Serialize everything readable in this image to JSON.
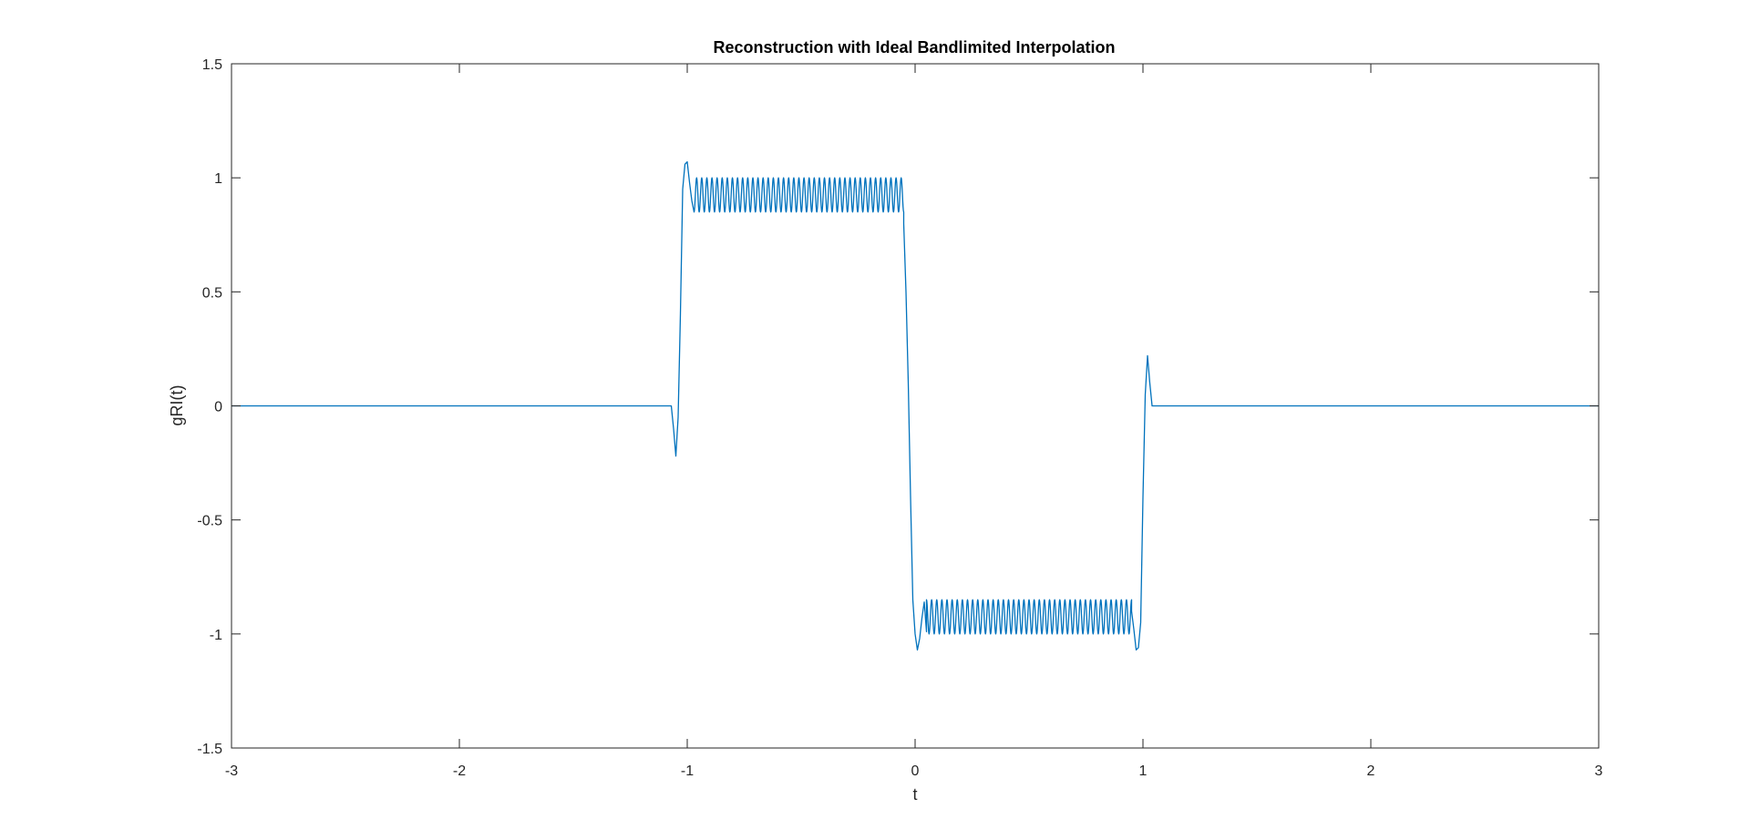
{
  "chart_data": {
    "type": "line",
    "title": "Reconstruction with Ideal Bandlimited Interpolation",
    "xlabel": "t",
    "ylabel": "gRI(t)",
    "xlim": [
      -3,
      3
    ],
    "ylim": [
      -1.5,
      1.5
    ],
    "xticks": [
      -3,
      -2,
      -1,
      0,
      1,
      2,
      3
    ],
    "xtick_labels": [
      "-3",
      "-2",
      "-1",
      "0",
      "1",
      "2",
      "3"
    ],
    "yticks": [
      -1.5,
      -1,
      -0.5,
      0,
      0.5,
      1,
      1.5
    ],
    "ytick_labels": [
      "-1.5",
      "-1",
      "-0.5",
      "0",
      "0.5",
      "1",
      "1.5"
    ],
    "grid": false,
    "line_color": "#0072BD",
    "series": [
      {
        "x": [
          -3,
          -1.07,
          -1.06,
          -1.05,
          -1.04,
          -1.03,
          -1.02,
          -1.01,
          -1.0,
          -0.99,
          -0.98,
          -0.96,
          -0.95,
          -0.94,
          -0.92,
          -0.1,
          -0.08,
          -0.07,
          -0.06,
          -0.05,
          -0.04,
          -0.03,
          -0.02,
          -0.01,
          0.0,
          0.01,
          0.02,
          0.03,
          0.04,
          0.05,
          0.06,
          0.08,
          0.9,
          0.92,
          0.93,
          0.94,
          0.95,
          0.96,
          0.97,
          0.98,
          0.99,
          1.0,
          1.01,
          1.02,
          1.03,
          1.04,
          1.05,
          3
        ],
        "y": [
          0,
          0,
          -0.1,
          -0.22,
          -0.05,
          0.4,
          0.95,
          1.06,
          1.07,
          0.98,
          0.9,
          0.86,
          1.0,
          0.86,
          1.0,
          1.0,
          1.07,
          1.06,
          0.95,
          0.8,
          0.5,
          0.1,
          -0.4,
          -0.85,
          -1.0,
          -1.07,
          -1.02,
          -0.93,
          -0.86,
          -0.99,
          -0.86,
          -0.99,
          -0.99,
          -0.86,
          -0.99,
          -0.86,
          -0.9,
          -0.98,
          -1.07,
          -1.06,
          -0.95,
          -0.4,
          0.05,
          0.22,
          0.1,
          0,
          0,
          0
        ]
      }
    ],
    "ripple": {
      "positive_segment": {
        "x_start": -0.97,
        "x_end": -0.05,
        "y_high": 1.0,
        "y_low": 0.85,
        "cycles": 41
      },
      "negative_segment": {
        "x_start": 0.05,
        "x_end": 0.95,
        "y_high": -0.85,
        "y_low": -1.0,
        "cycles": 40
      }
    }
  }
}
